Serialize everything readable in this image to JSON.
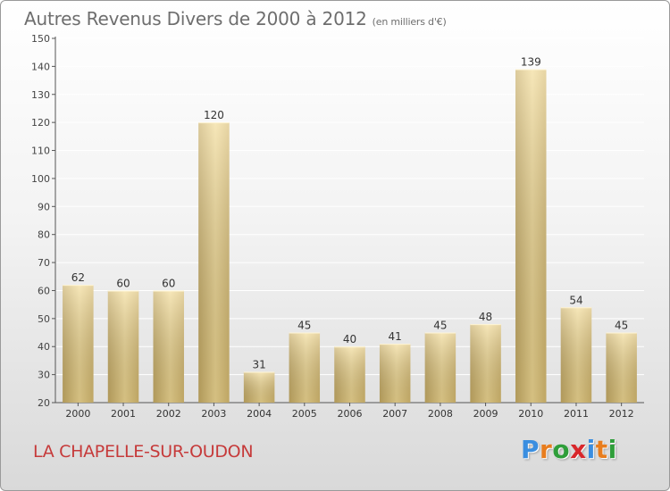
{
  "header": {
    "title": "Autres Revenus Divers de 2000 à 2012",
    "subtitle": "(en milliers d'€)"
  },
  "footer": {
    "commune": "LA CHAPELLE-SUR-OUDON",
    "logo_letters": [
      "P",
      "r",
      "o",
      "x",
      "i",
      "t",
      "i"
    ],
    "logo_colors": [
      "#3a8ee0",
      "#e87d1e",
      "#2f9e3a",
      "#d8272b",
      "#3a8ee0",
      "#e87d1e",
      "#2f9e3a"
    ]
  },
  "chart_data": {
    "type": "bar",
    "title": "Autres Revenus Divers de 2000 à 2012",
    "subtitle": "(en milliers d'€)",
    "categories": [
      "2000",
      "2001",
      "2002",
      "2003",
      "2004",
      "2005",
      "2006",
      "2007",
      "2008",
      "2009",
      "2010",
      "2011",
      "2012"
    ],
    "values": [
      62,
      60,
      60,
      120,
      31,
      45,
      40,
      41,
      45,
      48,
      139,
      54,
      45
    ],
    "ylim": [
      20,
      150
    ],
    "yticks": [
      20,
      30,
      40,
      50,
      60,
      70,
      80,
      90,
      100,
      110,
      120,
      130,
      140,
      150
    ],
    "grid": true,
    "bar_color": "#e6c97e",
    "legend": "none"
  }
}
